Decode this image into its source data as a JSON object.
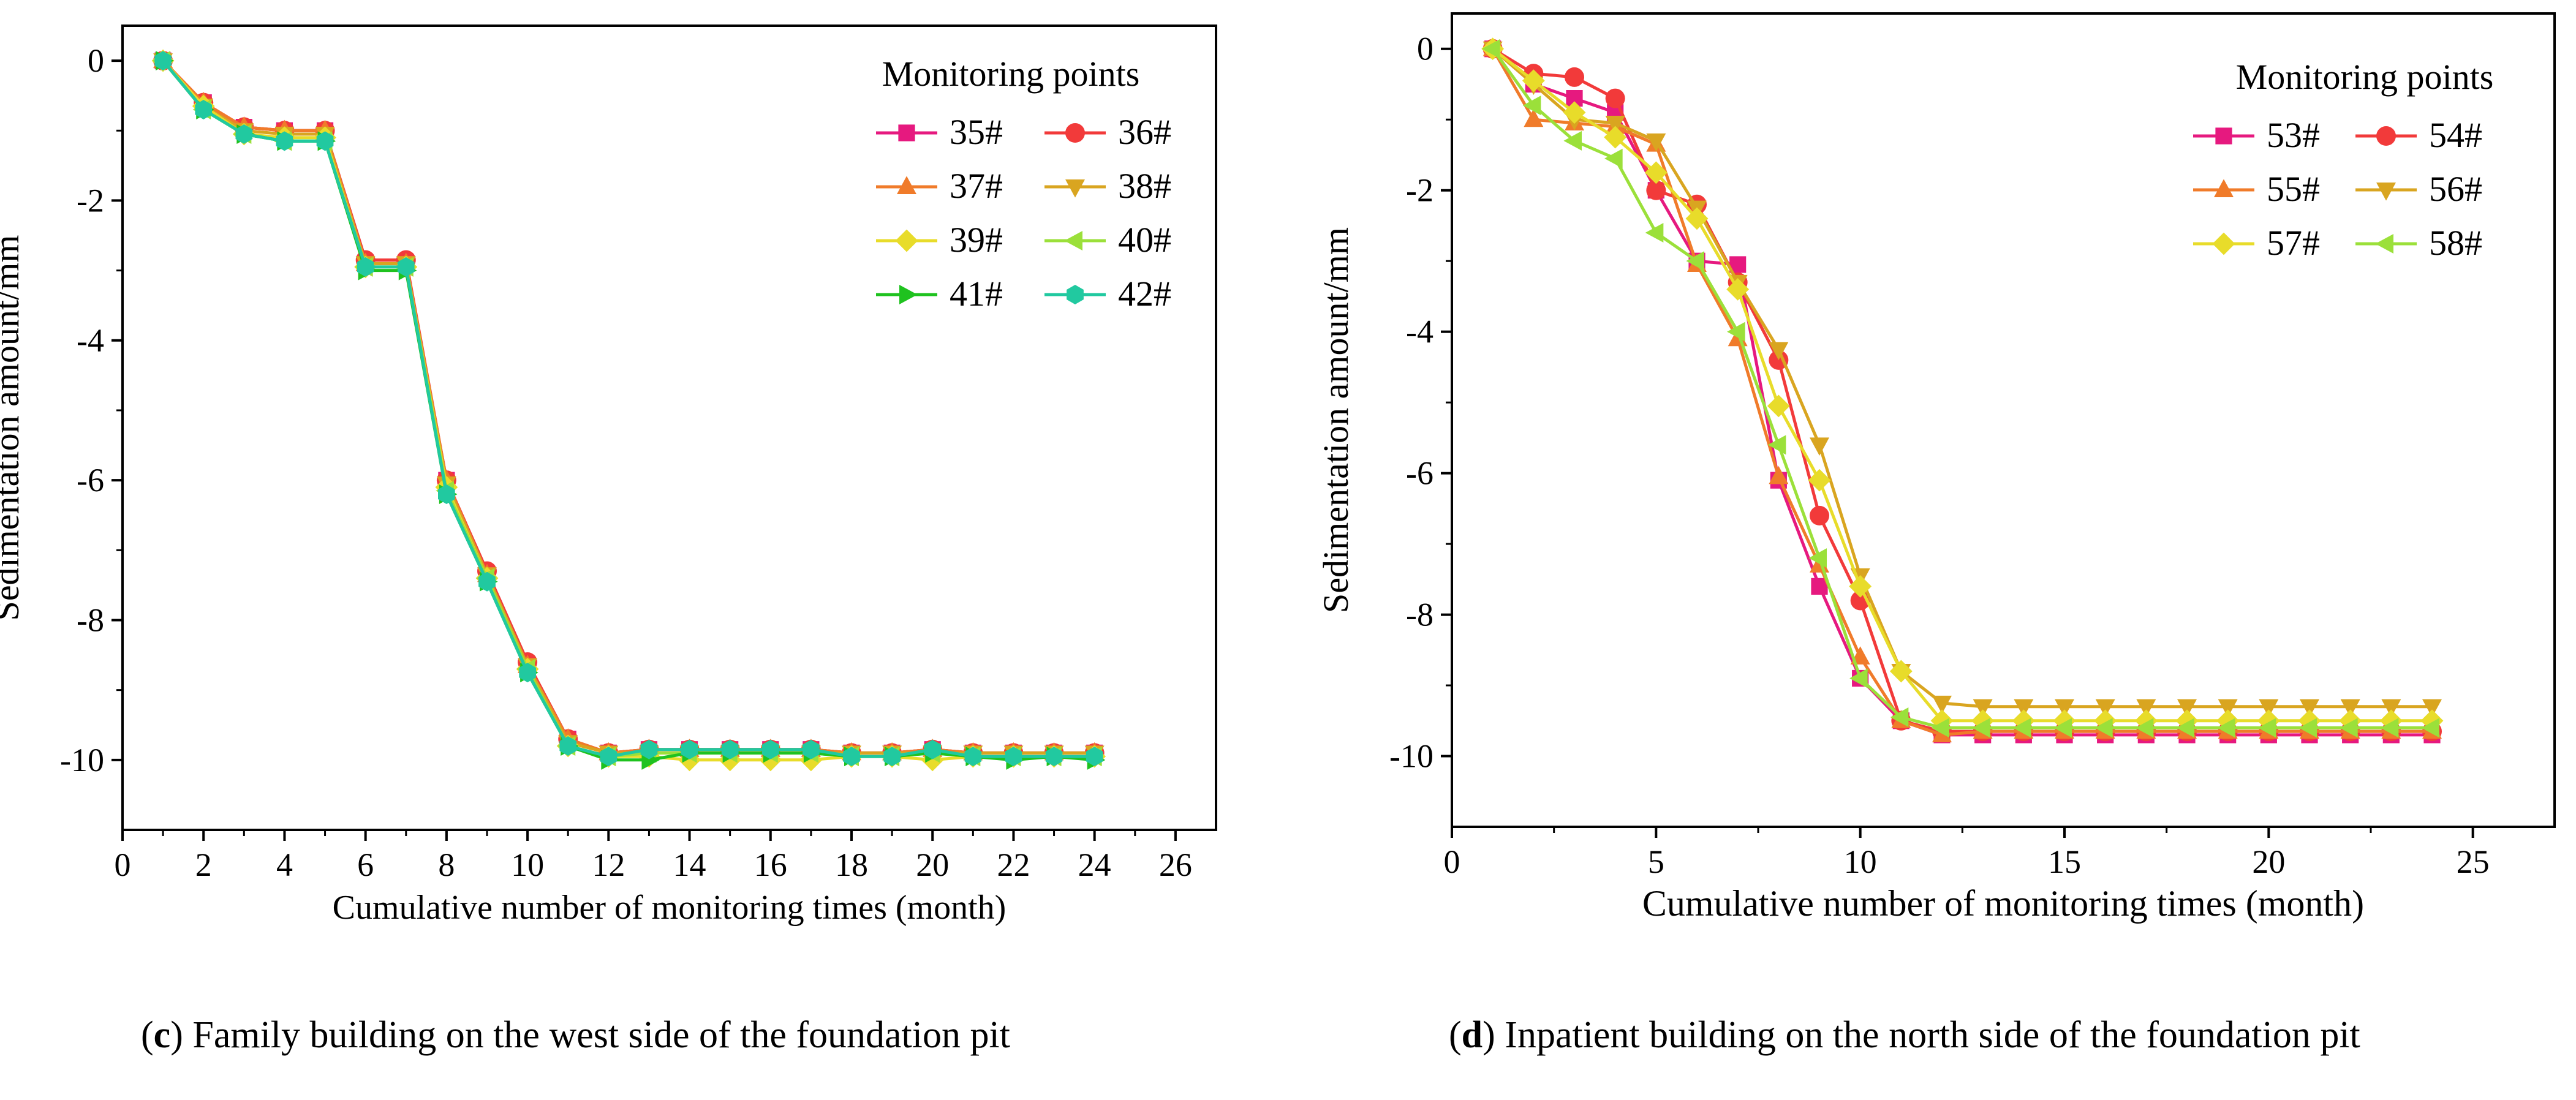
{
  "chart_data": [
    {
      "type": "line",
      "panel_letter": "c",
      "caption": "Family building on the west side of the foundation pit",
      "xlabel": "Cumulative number of monitoring times (month)",
      "ylabel": "Sedimentation amount/mm",
      "xlim": [
        0,
        27
      ],
      "ylim": [
        -11,
        0.5
      ],
      "xticks": [
        0,
        2,
        4,
        6,
        8,
        10,
        12,
        14,
        16,
        18,
        20,
        22,
        24,
        26
      ],
      "yticks": [
        0,
        -2,
        -4,
        -6,
        -8,
        -10
      ],
      "legend_title": "Monitoring points",
      "legend_position": "top-right",
      "x": [
        1,
        2,
        3,
        4,
        5,
        6,
        7,
        8,
        9,
        10,
        11,
        12,
        13,
        14,
        15,
        16,
        17,
        18,
        19,
        20,
        21,
        22,
        23,
        24
      ],
      "series": [
        {
          "name": "35#",
          "color": "#e6197f",
          "marker": "square",
          "values": [
            0,
            -0.6,
            -0.95,
            -1.0,
            -1.0,
            -2.9,
            -2.9,
            -6.0,
            -7.35,
            -8.65,
            -9.7,
            -9.9,
            -9.85,
            -9.85,
            -9.85,
            -9.85,
            -9.85,
            -9.9,
            -9.9,
            -9.85,
            -9.9,
            -9.9,
            -9.9,
            -9.9
          ]
        },
        {
          "name": "36#",
          "color": "#f23a3a",
          "marker": "circle",
          "values": [
            0,
            -0.6,
            -0.95,
            -1.0,
            -1.0,
            -2.85,
            -2.85,
            -6.0,
            -7.3,
            -8.6,
            -9.7,
            -9.9,
            -9.85,
            -9.85,
            -9.85,
            -9.85,
            -9.85,
            -9.9,
            -9.9,
            -9.85,
            -9.9,
            -9.9,
            -9.9,
            -9.9
          ]
        },
        {
          "name": "37#",
          "color": "#f07b2a",
          "marker": "triangle-up",
          "values": [
            0,
            -0.6,
            -0.95,
            -1.0,
            -1.0,
            -2.9,
            -2.9,
            -6.0,
            -7.35,
            -8.65,
            -9.7,
            -9.9,
            -9.85,
            -9.85,
            -9.85,
            -9.85,
            -9.85,
            -9.9,
            -9.9,
            -9.85,
            -9.9,
            -9.9,
            -9.9,
            -9.9
          ]
        },
        {
          "name": "38#",
          "color": "#d9a520",
          "marker": "triangle-down",
          "values": [
            0,
            -0.65,
            -1.0,
            -1.05,
            -1.05,
            -2.9,
            -2.9,
            -6.05,
            -7.35,
            -8.65,
            -9.75,
            -9.9,
            -9.9,
            -9.9,
            -9.9,
            -9.9,
            -9.9,
            -9.9,
            -9.9,
            -9.9,
            -9.9,
            -9.9,
            -9.9,
            -9.9
          ]
        },
        {
          "name": "39#",
          "color": "#e8dc2a",
          "marker": "diamond",
          "values": [
            0,
            -0.65,
            -1.05,
            -1.1,
            -1.1,
            -2.95,
            -2.95,
            -6.1,
            -7.4,
            -8.7,
            -9.8,
            -9.95,
            -9.95,
            -10.0,
            -10.0,
            -10.0,
            -10.0,
            -9.95,
            -9.95,
            -10.0,
            -9.95,
            -9.95,
            -9.95,
            -9.95
          ]
        },
        {
          "name": "40#",
          "color": "#9be03a",
          "marker": "triangle-left",
          "values": [
            0,
            -0.7,
            -1.05,
            -1.15,
            -1.15,
            -2.95,
            -2.95,
            -6.15,
            -7.4,
            -8.7,
            -9.8,
            -9.95,
            -9.9,
            -9.9,
            -9.9,
            -9.9,
            -9.9,
            -9.95,
            -9.95,
            -9.9,
            -9.95,
            -9.95,
            -9.95,
            -9.95
          ]
        },
        {
          "name": "41#",
          "color": "#1fc21f",
          "marker": "triangle-right",
          "values": [
            0,
            -0.7,
            -1.05,
            -1.15,
            -1.15,
            -3.0,
            -3.0,
            -6.2,
            -7.45,
            -8.75,
            -9.8,
            -10.0,
            -10.0,
            -9.9,
            -9.9,
            -9.9,
            -9.9,
            -9.95,
            -9.95,
            -9.9,
            -9.95,
            -10.0,
            -9.95,
            -10.0
          ]
        },
        {
          "name": "42#",
          "color": "#21c9a0",
          "marker": "hexagon",
          "values": [
            0,
            -0.7,
            -1.05,
            -1.15,
            -1.15,
            -2.95,
            -2.95,
            -6.2,
            -7.45,
            -8.75,
            -9.8,
            -9.95,
            -9.85,
            -9.85,
            -9.85,
            -9.85,
            -9.85,
            -9.95,
            -9.95,
            -9.85,
            -9.95,
            -9.95,
            -9.95,
            -9.95
          ]
        }
      ]
    },
    {
      "type": "line",
      "panel_letter": "d",
      "caption": "Inpatient building on the north side of the foundation pit",
      "xlabel": "Cumulative number of monitoring times (month)",
      "ylabel": "Sedimentation amount/mm",
      "xlim": [
        0,
        27
      ],
      "ylim": [
        -11,
        0.5
      ],
      "xticks": [
        0,
        5,
        10,
        15,
        20,
        25
      ],
      "yticks": [
        0,
        -2,
        -4,
        -6,
        -8,
        -10
      ],
      "legend_title": "Monitoring points",
      "legend_position": "top-right",
      "x": [
        1,
        2,
        3,
        4,
        5,
        6,
        7,
        8,
        9,
        10,
        11,
        12,
        13,
        14,
        15,
        16,
        17,
        18,
        19,
        20,
        21,
        22,
        23,
        24
      ],
      "series": [
        {
          "name": "53#",
          "color": "#e6197f",
          "marker": "square",
          "values": [
            0,
            -0.5,
            -0.7,
            -0.9,
            -2.0,
            -3.0,
            -3.05,
            -6.1,
            -7.6,
            -8.9,
            -9.5,
            -9.7,
            -9.7,
            -9.7,
            -9.7,
            -9.7,
            -9.7,
            -9.7,
            -9.7,
            -9.7,
            -9.7,
            -9.7,
            -9.7,
            -9.7
          ]
        },
        {
          "name": "54#",
          "color": "#f23a3a",
          "marker": "circle",
          "values": [
            0,
            -0.35,
            -0.4,
            -0.7,
            -2.0,
            -2.2,
            -3.3,
            -4.4,
            -6.6,
            -7.8,
            -9.5,
            -9.65,
            -9.65,
            -9.65,
            -9.65,
            -9.65,
            -9.65,
            -9.65,
            -9.65,
            -9.65,
            -9.65,
            -9.65,
            -9.65,
            -9.65
          ]
        },
        {
          "name": "55#",
          "color": "#f07b2a",
          "marker": "triangle-up",
          "values": [
            0,
            -1.0,
            -1.05,
            -1.1,
            -1.35,
            -3.05,
            -4.1,
            -6.05,
            -7.3,
            -8.6,
            -9.5,
            -9.7,
            -9.65,
            -9.65,
            -9.65,
            -9.65,
            -9.65,
            -9.65,
            -9.65,
            -9.65,
            -9.65,
            -9.65,
            -9.65,
            -9.65
          ]
        },
        {
          "name": "56#",
          "color": "#d9a520",
          "marker": "triangle-down",
          "values": [
            0,
            -0.5,
            -1.0,
            -1.05,
            -1.3,
            -2.25,
            -3.3,
            -4.25,
            -5.6,
            -7.45,
            -8.8,
            -9.25,
            -9.3,
            -9.3,
            -9.3,
            -9.3,
            -9.3,
            -9.3,
            -9.3,
            -9.3,
            -9.3,
            -9.3,
            -9.3,
            -9.3
          ]
        },
        {
          "name": "57#",
          "color": "#e8dc2a",
          "marker": "diamond",
          "values": [
            0,
            -0.45,
            -0.9,
            -1.25,
            -1.75,
            -2.4,
            -3.4,
            -5.05,
            -6.1,
            -7.6,
            -8.8,
            -9.5,
            -9.5,
            -9.5,
            -9.5,
            -9.5,
            -9.5,
            -9.5,
            -9.5,
            -9.5,
            -9.5,
            -9.5,
            -9.5,
            -9.5
          ]
        },
        {
          "name": "58#",
          "color": "#9be03a",
          "marker": "triangle-left",
          "values": [
            0,
            -0.8,
            -1.3,
            -1.55,
            -2.6,
            -3.0,
            -4.0,
            -5.6,
            -7.2,
            -8.9,
            -9.45,
            -9.6,
            -9.6,
            -9.6,
            -9.6,
            -9.6,
            -9.6,
            -9.6,
            -9.6,
            -9.6,
            -9.6,
            -9.6,
            -9.6,
            -9.6
          ]
        }
      ]
    }
  ]
}
